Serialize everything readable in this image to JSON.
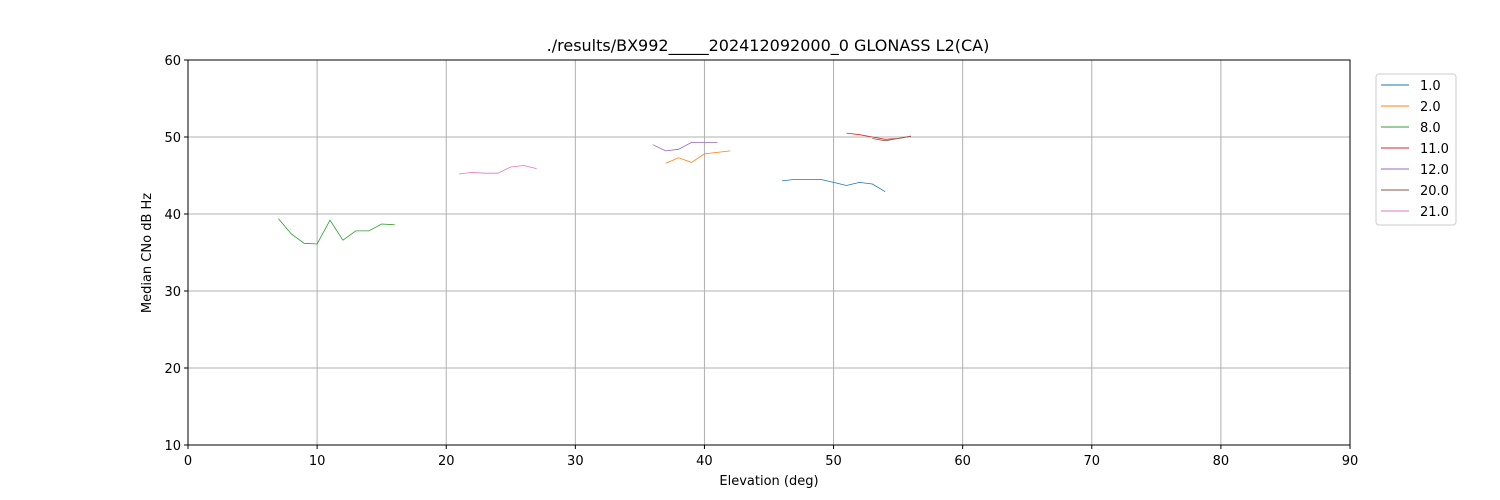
{
  "chart_data": {
    "type": "line",
    "title": "./results/BX992_____202412092000_0 GLONASS L2(CA)",
    "xlabel": "Elevation (deg)",
    "ylabel": "Median CNo dB Hz",
    "xlim": [
      0,
      90
    ],
    "ylim": [
      10,
      60
    ],
    "xticks": [
      "0",
      "10",
      "20",
      "30",
      "40",
      "50",
      "60",
      "70",
      "80",
      "90"
    ],
    "yticks": [
      "10",
      "20",
      "30",
      "40",
      "50",
      "60"
    ],
    "grid": true,
    "legend_position": "outside-top-right",
    "series": [
      {
        "name": "1.0",
        "color": "#1f77b4",
        "x": [
          46,
          47,
          48,
          49,
          50,
          51,
          52,
          53,
          54
        ],
        "y": [
          44.3,
          44.5,
          44.5,
          44.5,
          44.1,
          43.7,
          44.1,
          43.9,
          42.9
        ]
      },
      {
        "name": "2.0",
        "color": "#ff7f0e",
        "x": [
          37,
          38,
          39,
          40,
          41,
          42
        ],
        "y": [
          46.6,
          47.3,
          46.7,
          47.8,
          48.0,
          48.2
        ]
      },
      {
        "name": "8.0",
        "color": "#2ca02c",
        "x": [
          7,
          8,
          9,
          10,
          11,
          12,
          13,
          14,
          15,
          16
        ],
        "y": [
          39.4,
          37.4,
          36.2,
          36.1,
          39.2,
          36.6,
          37.8,
          37.8,
          38.7,
          38.6
        ]
      },
      {
        "name": "11.0",
        "color": "#d62728",
        "x": [
          51,
          52,
          53,
          54,
          55,
          56
        ],
        "y": [
          50.5,
          50.3,
          50.0,
          49.7,
          49.8,
          50.1
        ]
      },
      {
        "name": "12.0",
        "color": "#9467bd",
        "x": [
          36,
          37,
          38,
          39,
          40,
          41
        ],
        "y": [
          49.0,
          48.2,
          48.4,
          49.3,
          49.3,
          49.3
        ]
      },
      {
        "name": "20.0",
        "color": "#8c564b",
        "x": [
          53,
          54,
          55,
          56
        ],
        "y": [
          49.8,
          49.5,
          49.8,
          50.1
        ]
      },
      {
        "name": "21.0",
        "color": "#e377c2",
        "x": [
          21,
          22,
          23,
          24,
          25,
          26,
          27
        ],
        "y": [
          45.2,
          45.4,
          45.3,
          45.3,
          46.1,
          46.3,
          45.9
        ]
      }
    ]
  }
}
